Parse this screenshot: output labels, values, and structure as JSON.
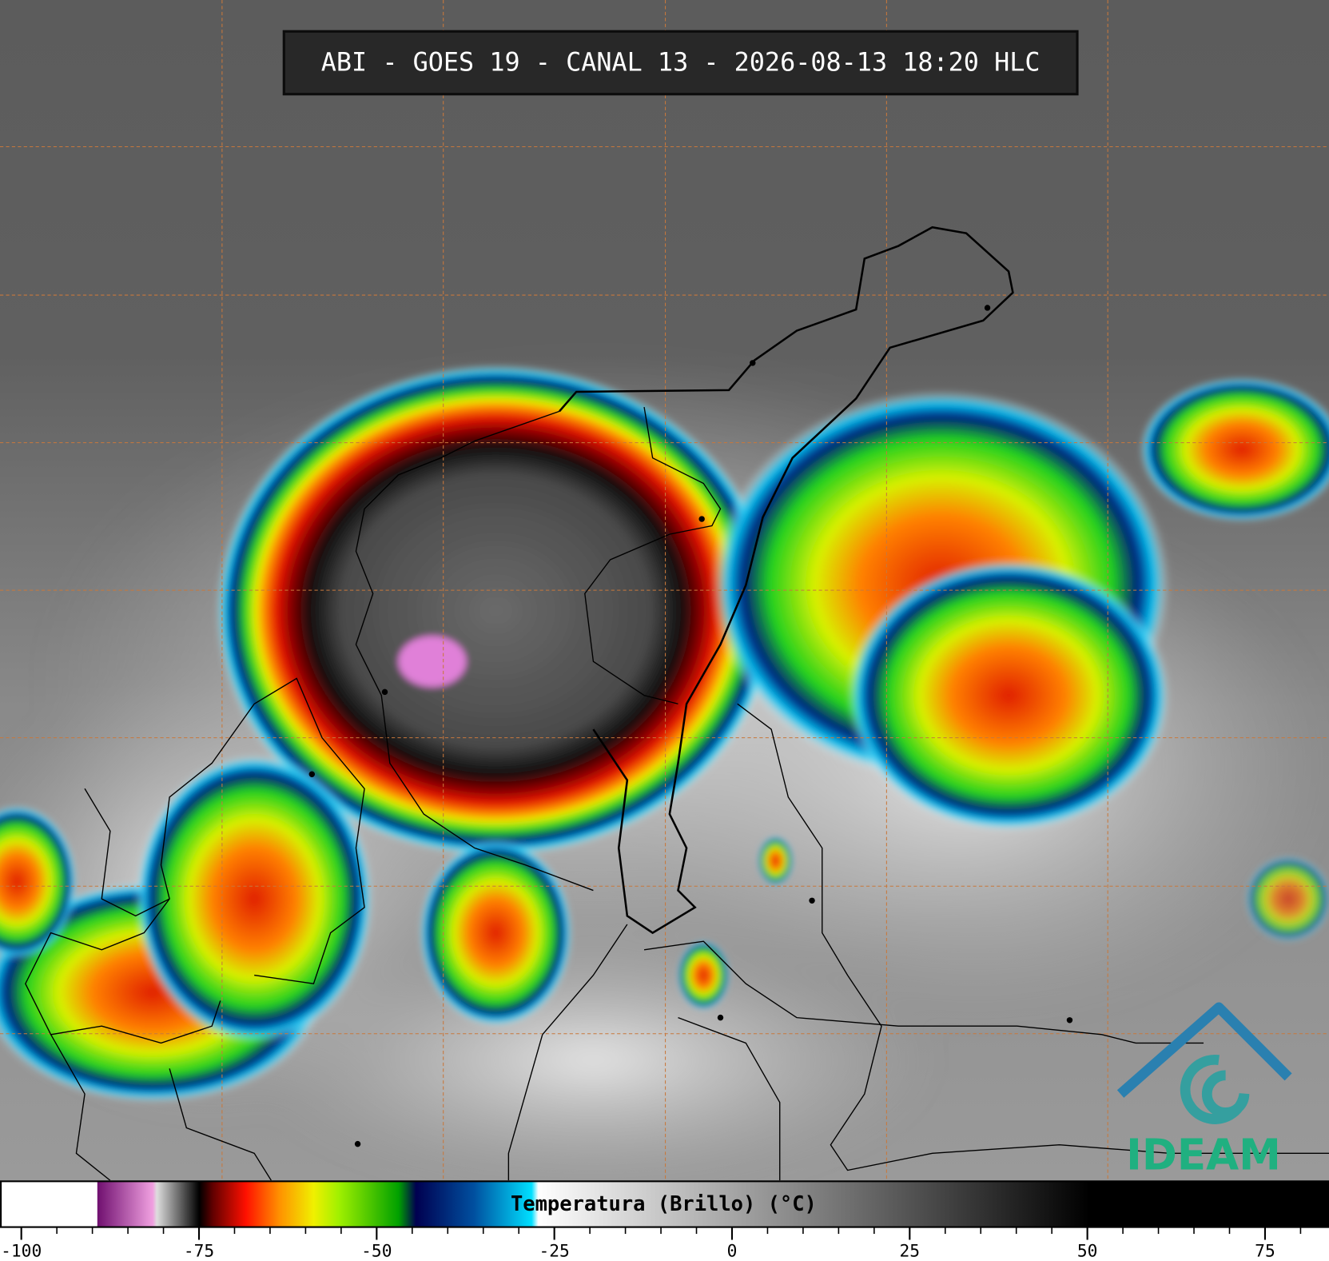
{
  "header": {
    "title": "ABI - GOES 19 - CANAL 13 - 2026-08-13 18:20 HLC"
  },
  "colorbar": {
    "label": "Temperatura (Brillo) (°C)",
    "range": [
      -103,
      84
    ],
    "ticks": [
      -100,
      -75,
      -50,
      -25,
      0,
      25,
      50,
      75
    ],
    "minor_ticks": [
      -95,
      -90,
      -85,
      -80,
      -70,
      -65,
      -60,
      -55,
      -45,
      -40,
      -35,
      -30,
      -20,
      -15,
      -10,
      -5,
      5,
      10,
      15,
      20,
      30,
      35,
      40,
      45,
      55,
      60,
      65,
      70,
      80
    ]
  },
  "logo": {
    "text": "IDEAM"
  }
}
